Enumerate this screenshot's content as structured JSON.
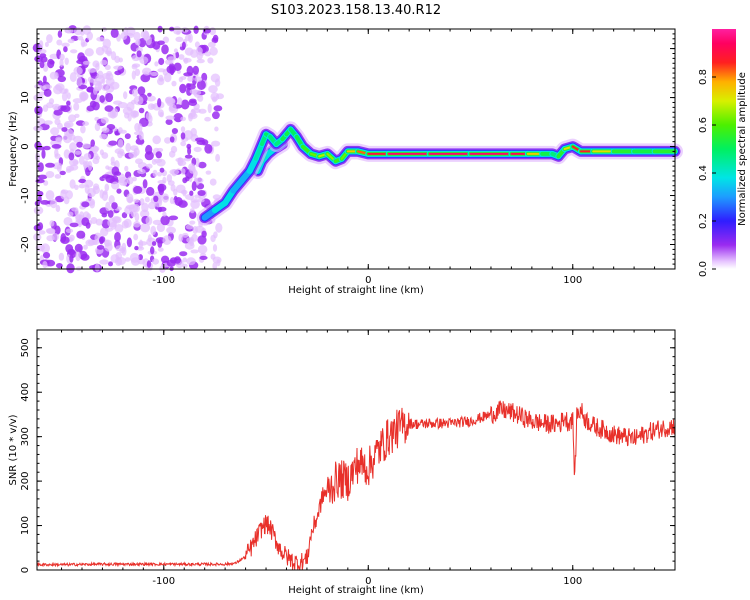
{
  "title": "S103.2023.158.13.40.R12",
  "chart_data": [
    {
      "type": "heatmap",
      "xlabel": "Height of straight line (km)",
      "ylabel": "Frequency (Hz)",
      "xlim": [
        -162,
        150
      ],
      "ylim": [
        -25,
        24
      ],
      "xticks": [
        -100,
        0,
        100
      ],
      "yticks": [
        -20,
        -10,
        0,
        10,
        20
      ],
      "colorbar": {
        "label": "Normalized spectral amplitude",
        "range": [
          0,
          1
        ],
        "ticks": [
          "0.0",
          "0.2",
          "0.4",
          "0.6",
          "0.8"
        ]
      },
      "noise_region": {
        "x_from": -162,
        "x_to": -72,
        "freq_from": -25,
        "freq_to": 24,
        "amplitude": 0.1
      },
      "ridge": {
        "x": [
          -80,
          -75,
          -70,
          -66,
          -62,
          -58,
          -55,
          -52,
          -50,
          -48,
          -45,
          -42,
          -40,
          -38,
          -35,
          -32,
          -28,
          -24,
          -20,
          -16,
          -13,
          -10,
          -5,
          0,
          10,
          30,
          50,
          70,
          78,
          85,
          90,
          93,
          96,
          100,
          104,
          110,
          120,
          130,
          140,
          150
        ],
        "frequency": [
          -14.5,
          -13,
          -11.5,
          -9,
          -7,
          -5,
          -2.5,
          0.5,
          2.5,
          2,
          0.5,
          1.5,
          2.5,
          3.5,
          2,
          0,
          -1.5,
          -2,
          -1.5,
          -3,
          -2.5,
          -1,
          -1,
          -1.5,
          -1.5,
          -1.5,
          -1.5,
          -1.5,
          -1.5,
          -1.5,
          -1.5,
          -2,
          -0.5,
          0,
          -1,
          -1,
          -1,
          -1,
          -1,
          -1
        ],
        "amplitude": [
          0.25,
          0.35,
          0.4,
          0.35,
          0.3,
          0.35,
          0.4,
          0.45,
          0.5,
          0.5,
          0.45,
          0.5,
          0.55,
          0.5,
          0.5,
          0.55,
          0.6,
          0.65,
          0.7,
          0.6,
          0.55,
          0.7,
          0.8,
          0.85,
          0.95,
          0.95,
          0.95,
          0.95,
          0.9,
          0.6,
          0.45,
          0.5,
          0.6,
          0.85,
          0.9,
          0.85,
          0.6,
          0.5,
          0.55,
          0.55
        ]
      },
      "secondary_ridge": {
        "x": [
          -54,
          -52,
          -49,
          -46,
          -44,
          -42
        ],
        "frequency": [
          -5,
          -3,
          -1.5,
          -0.5,
          0,
          0.5
        ],
        "amplitude": [
          0.35,
          0.4,
          0.4,
          0.35,
          0.3,
          0.3
        ]
      }
    },
    {
      "type": "line",
      "xlabel": "Height of straight line (km)",
      "ylabel": "SNR (10 * v/v)",
      "xlim": [
        -162,
        150
      ],
      "ylim": [
        0,
        540
      ],
      "xticks": [
        -100,
        0,
        100
      ],
      "yticks": [
        0,
        100,
        200,
        300,
        400,
        500
      ],
      "color": "#e8302a",
      "series": [
        {
          "x": [
            -162,
            -150,
            -130,
            -110,
            -90,
            -75,
            -70,
            -65,
            -60,
            -56,
            -52,
            -50,
            -48,
            -46,
            -44,
            -42,
            -40,
            -37,
            -34,
            -30,
            -28,
            -25,
            -22,
            -20,
            -15,
            -10,
            -5,
            0,
            5,
            10,
            15,
            20,
            25,
            30,
            40,
            50,
            60,
            65,
            70,
            75,
            80,
            85,
            90,
            94,
            96,
            98,
            99,
            100,
            101,
            102,
            104,
            106,
            110,
            115,
            120,
            125,
            130,
            135,
            140,
            145,
            150
          ],
          "y": [
            12,
            12,
            13,
            13,
            13,
            13,
            13,
            15,
            30,
            60,
            95,
            105,
            95,
            75,
            55,
            40,
            30,
            20,
            15,
            25,
            80,
            120,
            170,
            175,
            205,
            200,
            240,
            230,
            270,
            300,
            320,
            330,
            328,
            330,
            330,
            335,
            350,
            360,
            355,
            345,
            335,
            330,
            328,
            330,
            345,
            330,
            340,
            335,
            200,
            350,
            360,
            340,
            325,
            315,
            305,
            300,
            295,
            305,
            315,
            320,
            325
          ]
        }
      ]
    }
  ]
}
